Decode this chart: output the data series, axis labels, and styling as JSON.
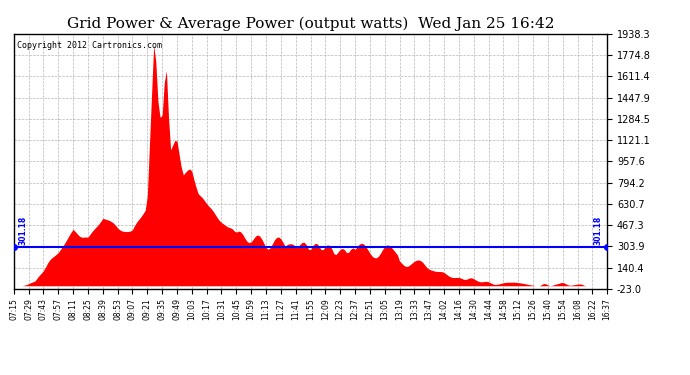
{
  "title": "Grid Power & Average Power (output watts)  Wed Jan 25 16:42",
  "copyright": "Copyright 2012 Cartronics.com",
  "avg_line_value": 301.18,
  "avg_label": "301.18",
  "y_min": -23.0,
  "y_max": 1938.3,
  "y_ticks": [
    -23.0,
    140.4,
    303.9,
    467.3,
    630.7,
    794.2,
    957.6,
    1121.1,
    1284.5,
    1447.9,
    1611.4,
    1774.8,
    1938.3
  ],
  "y_tick_labels": [
    "-23.0",
    "140.4",
    "303.9",
    "467.3",
    "630.7",
    "794.2",
    "957.6",
    "1121.1",
    "1284.5",
    "1447.9",
    "1611.4",
    "1774.8",
    "1938.3"
  ],
  "fill_color": "#ff0000",
  "avg_line_color": "#0000ff",
  "background_color": "#ffffff",
  "grid_color": "#888888",
  "title_fontsize": 11,
  "copyright_fontsize": 6,
  "x_labels": [
    "07:15",
    "07:29",
    "07:43",
    "07:57",
    "08:11",
    "08:25",
    "08:39",
    "08:53",
    "09:07",
    "09:21",
    "09:35",
    "09:49",
    "10:03",
    "10:17",
    "10:31",
    "10:45",
    "10:59",
    "11:13",
    "11:27",
    "11:41",
    "11:55",
    "12:09",
    "12:23",
    "12:37",
    "12:51",
    "13:05",
    "13:19",
    "13:33",
    "13:47",
    "14:02",
    "14:16",
    "14:30",
    "14:44",
    "14:58",
    "15:12",
    "15:26",
    "15:40",
    "15:54",
    "16:08",
    "16:22",
    "16:37"
  ]
}
